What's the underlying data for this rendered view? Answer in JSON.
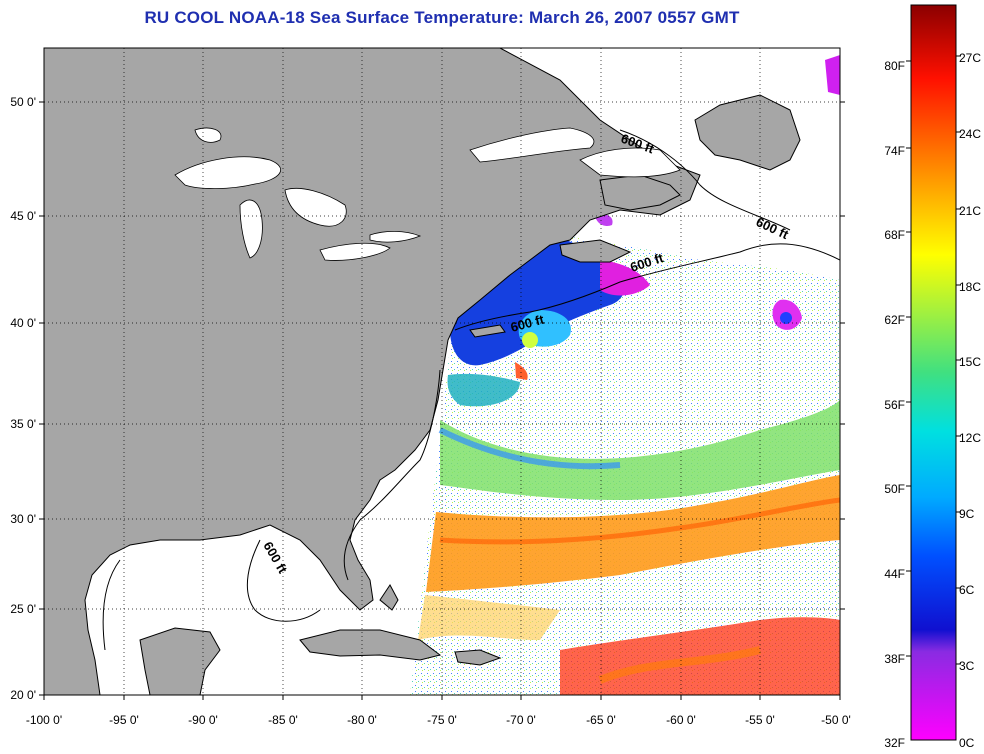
{
  "title": "RU COOL  NOAA-18  Sea Surface Temperature:  March 26, 2007 0557 GMT",
  "colors": {
    "land": "#a6a6a6",
    "cloud": "#ffffff",
    "title": "#1f2fb0"
  },
  "map": {
    "lon_range": [
      -100,
      -50
    ],
    "lat_range": [
      20,
      52.5
    ],
    "lon_ticks": [
      "-100 0'",
      "-95 0'",
      "-90 0'",
      "-85 0'",
      "-80 0'",
      "-75 0'",
      "-70 0'",
      "-65 0'",
      "-60 0'",
      "-55 0'",
      "-50 0'"
    ],
    "lat_ticks": [
      "20 0'",
      "25 0'",
      "30 0'",
      "35 0'",
      "40 0'",
      "45 0'",
      "50 0'"
    ],
    "grid": "dotted",
    "isobath_labels": [
      "600 ft",
      "600 ft",
      "600 ft",
      "600 ft",
      "600 ft"
    ]
  },
  "colorbar": {
    "fahrenheit_labels": [
      "80F",
      "74F",
      "68F",
      "62F",
      "56F",
      "50F",
      "44F",
      "38F",
      "32F"
    ],
    "celsius_labels": [
      "27C",
      "24C",
      "21C",
      "18C",
      "15C",
      "12C",
      "9C",
      "6C",
      "3C",
      "0C"
    ]
  }
}
